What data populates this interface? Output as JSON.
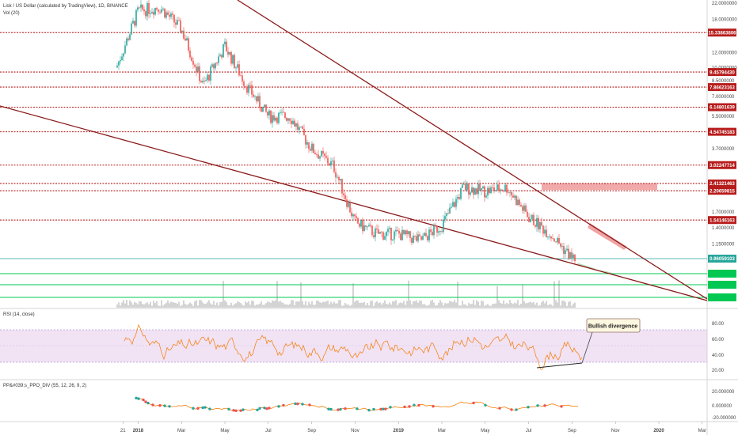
{
  "header": {
    "title": "Lisk / US Dollar (calculated by TradingView), 1D, BINANCE",
    "volume_label": "Vol (20)"
  },
  "rsi_panel": {
    "label": "RSI (14, close)",
    "annotation": "Bullish divergence",
    "axis": [
      "80.00",
      "60.00",
      "40.00",
      "20.00"
    ]
  },
  "ppo_panel": {
    "label": "PP&#039;s_PPO_DIV (55, 12, 26, 9, 2)",
    "axis": [
      "20.000000",
      "0.000000",
      "-20.000000"
    ]
  },
  "x_axis": [
    "21",
    "2018",
    "Mar",
    "May",
    "Jul",
    "Sep",
    "Nov",
    "2019",
    "Mar",
    "May",
    "Jul",
    "Sep",
    "Nov",
    "2020",
    "Mar"
  ],
  "price_axis": [
    "22.0000000",
    "18.0000000",
    "12.0000000",
    "10.0000000",
    "8.5000000",
    "7.0000000",
    "5.5000000",
    "3.7000000",
    "1.7000000",
    "1.4000000",
    "1.1500000"
  ],
  "price_levels": [
    {
      "label": "15.33863806",
      "color": "#b71c1c"
    },
    {
      "label": "9.45794430",
      "color": "#b71c1c"
    },
    {
      "label": "7.86623163",
      "color": "#b71c1c"
    },
    {
      "label": "6.14801639",
      "color": "#b71c1c"
    },
    {
      "label": "4.54745183",
      "color": "#b71c1c"
    },
    {
      "label": "3.02247714",
      "color": "#b71c1c"
    },
    {
      "label": "2.41321463",
      "color": "#b71c1c"
    },
    {
      "label": "2.20659815",
      "color": "#b71c1c"
    },
    {
      "label": "1.54146163",
      "color": "#b71c1c"
    },
    {
      "label": "0.96059103",
      "color": "#26a69a"
    }
  ],
  "support_levels": [
    {
      "color": "#00c853"
    },
    {
      "color": "#00c853"
    },
    {
      "color": "#00c853"
    }
  ],
  "colors": {
    "up": "#26a69a",
    "down": "#ef5350",
    "trendline": "#8b1a1a",
    "rsi_line": "#f57c00",
    "rsi_band": "#e1bee7",
    "resistance_zone": "#ef9a9a",
    "support_zone": "#a5d6a7",
    "volume": "#bdbdbd"
  },
  "chart_data": {
    "type": "line",
    "title": "Lisk / US Dollar (calculated by TradingView), 1D, BINANCE",
    "x": [
      "2017-12",
      "2018-01",
      "2018-02",
      "2018-03",
      "2018-04",
      "2018-05",
      "2018-06",
      "2018-07",
      "2018-08",
      "2018-09",
      "2018-10",
      "2018-11",
      "2018-12",
      "2019-01",
      "2019-02",
      "2019-03",
      "2019-04",
      "2019-05",
      "2019-06",
      "2019-07",
      "2019-08",
      "2019-09"
    ],
    "series": [
      {
        "values": [
          10,
          20,
          21,
          16,
          8,
          13,
          8,
          5.5,
          5.5,
          3.7,
          3.0,
          1.5,
          1.3,
          1.3,
          1.2,
          1.45,
          2.3,
          2.2,
          2.3,
          1.6,
          1.3,
          0.97
        ]
      }
    ],
    "y_scale": "log",
    "ylim": [
      0.85,
      24
    ],
    "grid": false
  }
}
